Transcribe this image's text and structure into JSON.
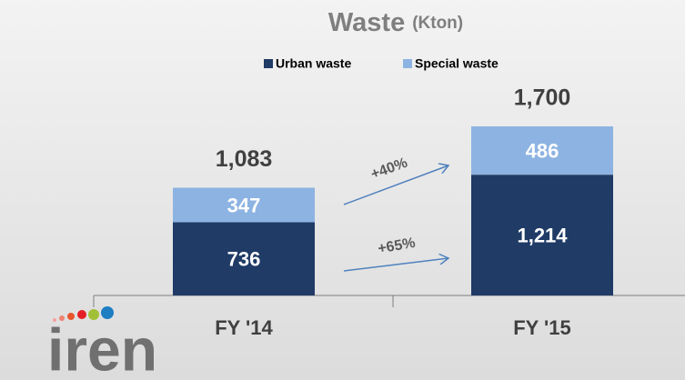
{
  "chart_data": {
    "type": "stacked_bar",
    "title": "Waste",
    "title_unit": "(Kton)",
    "categories": [
      "FY '14",
      "FY '15"
    ],
    "series": [
      {
        "name": "Urban waste",
        "color": "#1f3b66",
        "values": [
          736,
          1214
        ],
        "value_labels": [
          "736",
          "1,214"
        ]
      },
      {
        "name": "Special waste",
        "color": "#8db3e2",
        "values": [
          347,
          486
        ]
      }
    ],
    "totals": [
      1083,
      1700
    ],
    "total_labels": [
      "1,083",
      "1,700"
    ],
    "ylim": [
      0,
      1700
    ],
    "annotations": [
      "+40%",
      "+65%"
    ],
    "logo": "iren"
  }
}
